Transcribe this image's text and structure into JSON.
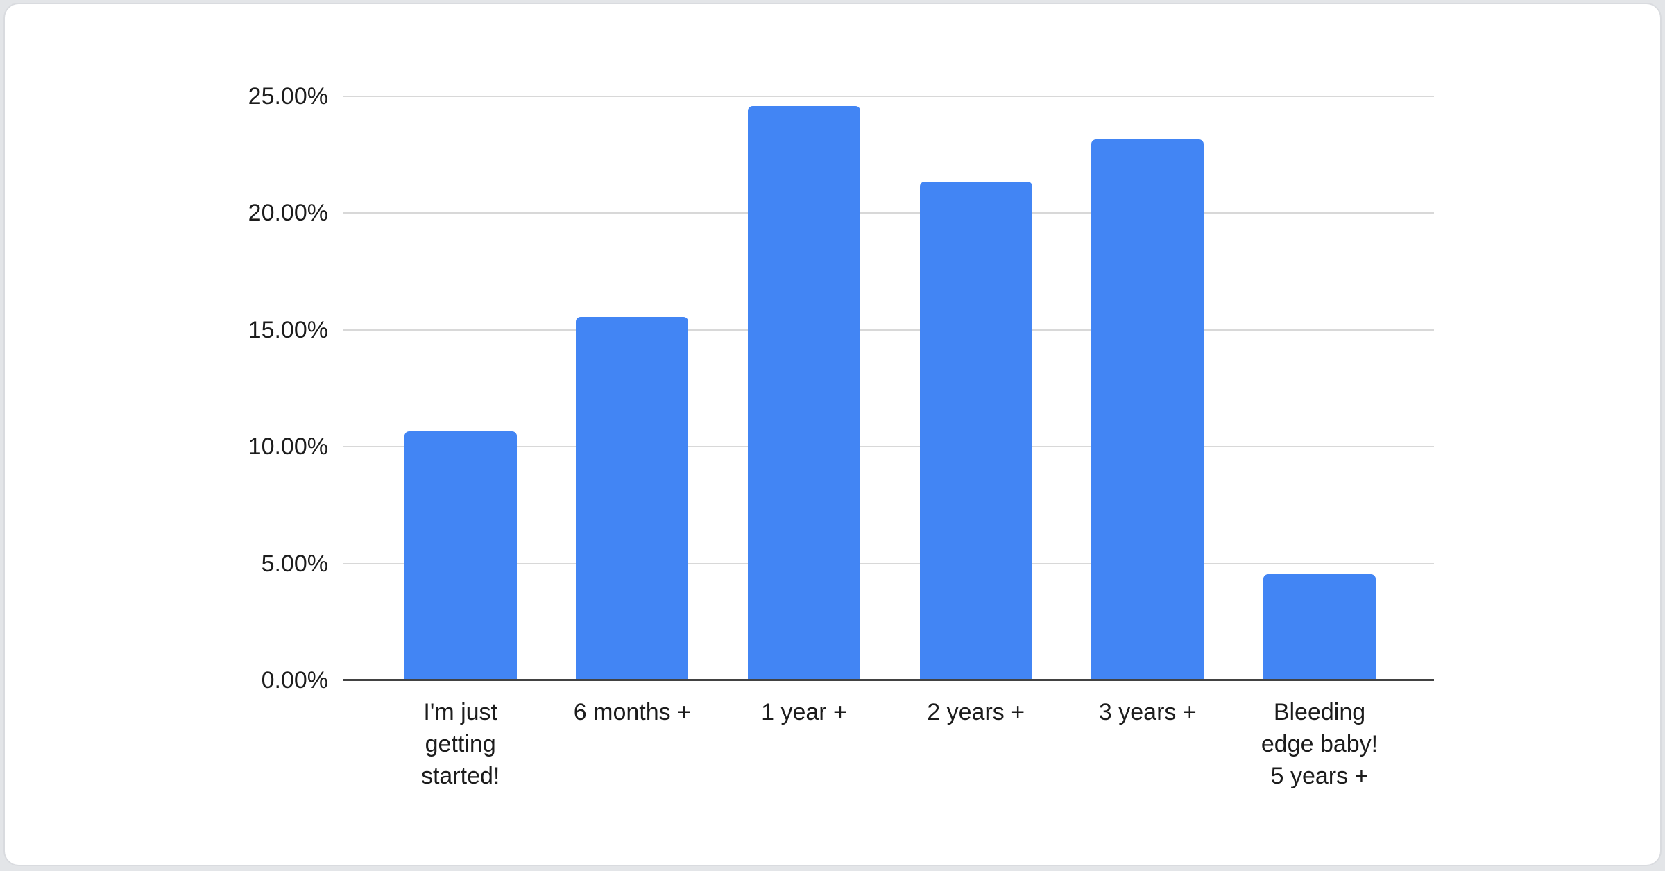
{
  "page": {
    "background_color": "#e3e5e8",
    "card": {
      "background": "#ffffff",
      "border_color": "#d9dbdf"
    }
  },
  "chart_data": {
    "type": "bar",
    "title": "",
    "xlabel": "",
    "ylabel": "",
    "categories": [
      "I'm just getting started!",
      "6 months +",
      "1 year +",
      "2 years +",
      "3 years +",
      "Bleeding edge baby! 5 years +"
    ],
    "category_display_lines": [
      [
        "I'm just",
        "getting",
        "started!"
      ],
      [
        "6 months +"
      ],
      [
        "1 year +"
      ],
      [
        "2 years +"
      ],
      [
        "3 years +"
      ],
      [
        "Bleeding",
        "edge baby!",
        "5 years +"
      ]
    ],
    "values": [
      10.67,
      15.56,
      24.58,
      21.35,
      23.16,
      4.54
    ],
    "value_unit": "percent",
    "ylim": [
      0,
      25
    ],
    "y_tick_interval": 5,
    "y_tick_labels": [
      "0.00%",
      "5.00%",
      "10.00%",
      "15.00%",
      "20.00%",
      "25.00%"
    ],
    "grid": true,
    "legend_position": "none",
    "bar_color": "#4285f4",
    "gridline_color": "#d8d8d8",
    "axis_line_color": "#424242",
    "text_color": "#1c1c1c"
  }
}
